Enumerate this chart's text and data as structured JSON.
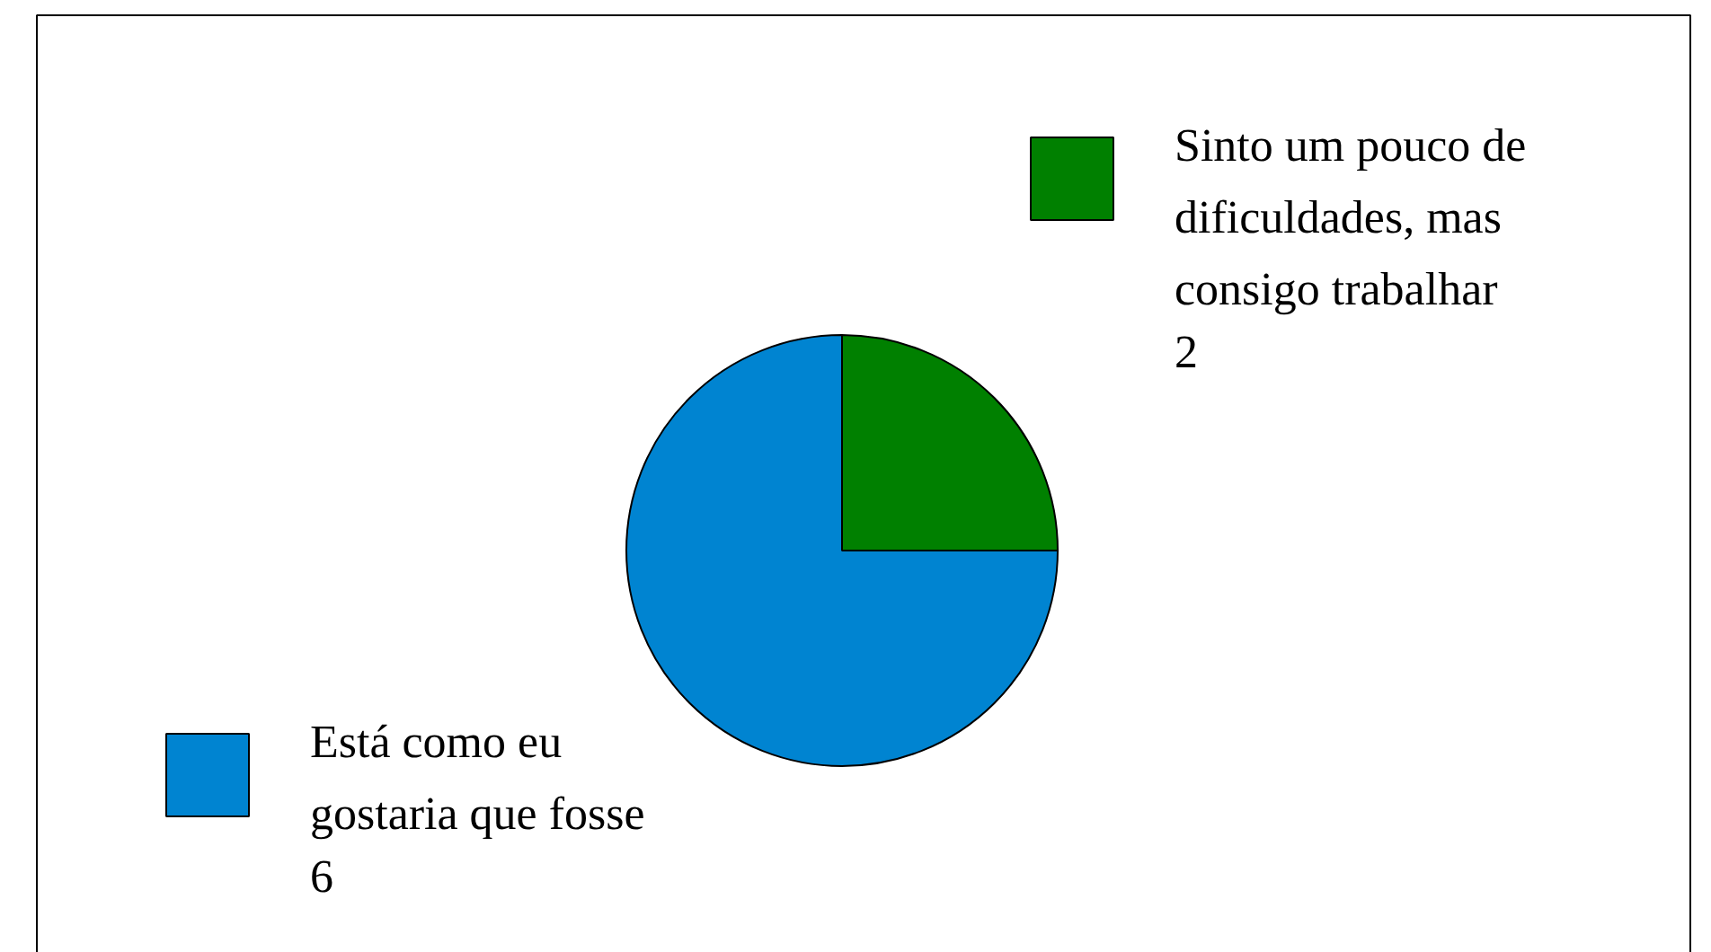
{
  "chart_data": {
    "type": "pie",
    "categories": [
      "Sinto um pouco de dificuldades, mas consigo trabalhar",
      "Está como eu gostaria que fosse"
    ],
    "values": [
      2,
      6
    ],
    "colors": [
      "#008000",
      "#0084d1"
    ],
    "data_labels": true,
    "legend": "right"
  }
}
